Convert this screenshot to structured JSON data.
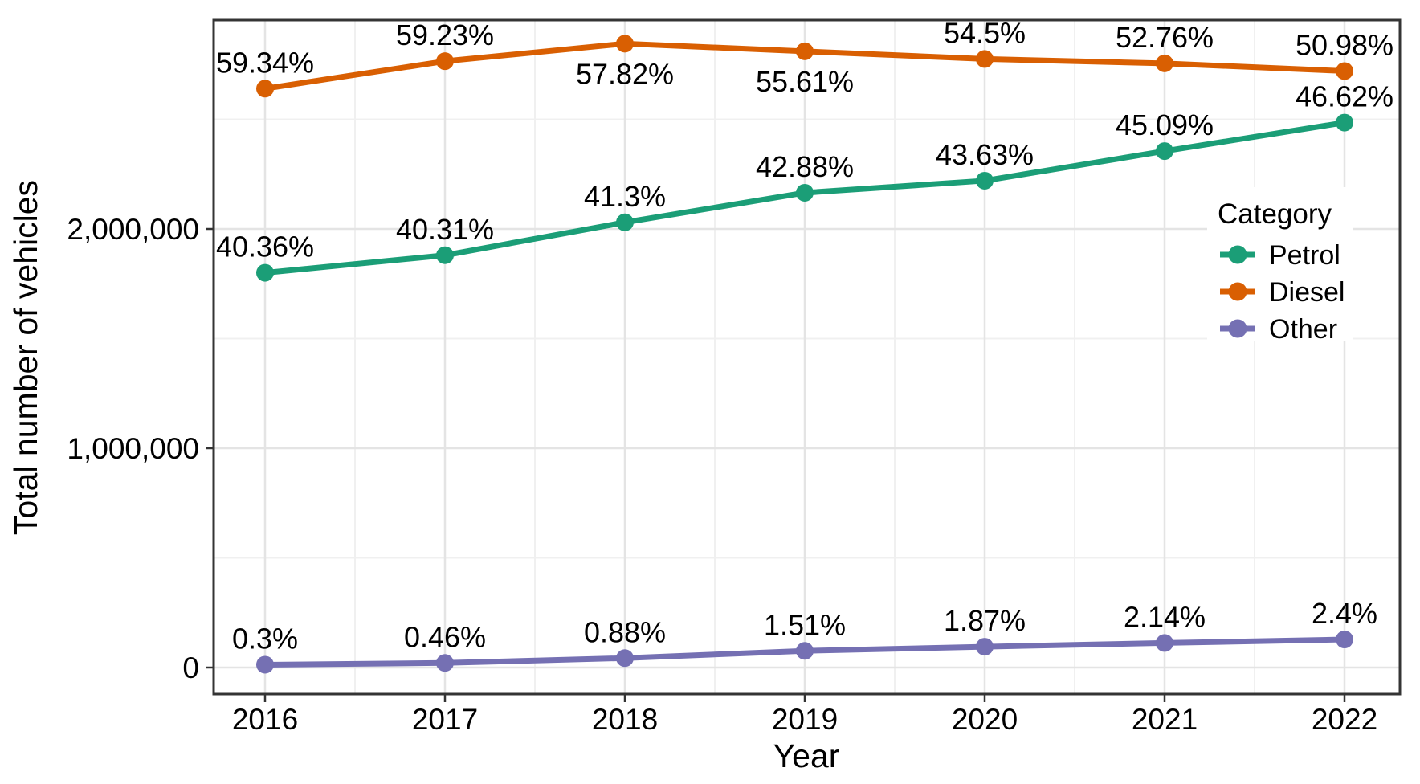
{
  "chart_data": {
    "type": "line",
    "title": "",
    "xlabel": "Year",
    "ylabel": "Total number of vehicles",
    "x_categories": [
      "2016",
      "2017",
      "2018",
      "2019",
      "2020",
      "2021",
      "2022"
    ],
    "y_ticks": [
      {
        "value": 0,
        "label": "0"
      },
      {
        "value": 1000000,
        "label": "1,000,000"
      },
      {
        "value": 2000000,
        "label": "2,000,000"
      }
    ],
    "y_minor_ticks": [
      500000,
      1500000,
      2500000
    ],
    "ylim": [
      -120000,
      2955000
    ],
    "grid": "major+minor",
    "legend": {
      "title": "Category",
      "position": "inside top-right"
    },
    "series": [
      {
        "name": "Petrol",
        "color": "#1B9E77",
        "values": [
          1800000,
          1880000,
          2030000,
          2165000,
          2220000,
          2355000,
          2485000
        ],
        "labels": [
          "40.36%",
          "40.31%",
          "41.3%",
          "42.88%",
          "43.63%",
          "45.09%",
          "46.62%"
        ],
        "label_side": [
          "above",
          "above",
          "above",
          "above",
          "above",
          "above",
          "above"
        ]
      },
      {
        "name": "Diesel",
        "color": "#D95F02",
        "values": [
          2640000,
          2765000,
          2845000,
          2810000,
          2775000,
          2755000,
          2720000
        ],
        "labels": [
          "59.34%",
          "59.23%",
          "57.82%",
          "55.61%",
          "54.5%",
          "52.76%",
          "50.98%"
        ],
        "label_side": [
          "above",
          "above",
          "below",
          "below",
          "above",
          "above",
          "above"
        ]
      },
      {
        "name": "Other",
        "color": "#7570B3",
        "values": [
          13000,
          21000,
          43000,
          76000,
          95000,
          112000,
          128000
        ],
        "labels": [
          "0.3%",
          "0.46%",
          "0.88%",
          "1.51%",
          "1.87%",
          "2.14%",
          "2.4%"
        ],
        "label_side": [
          "above",
          "above",
          "above",
          "above",
          "above",
          "above",
          "above"
        ]
      }
    ]
  }
}
